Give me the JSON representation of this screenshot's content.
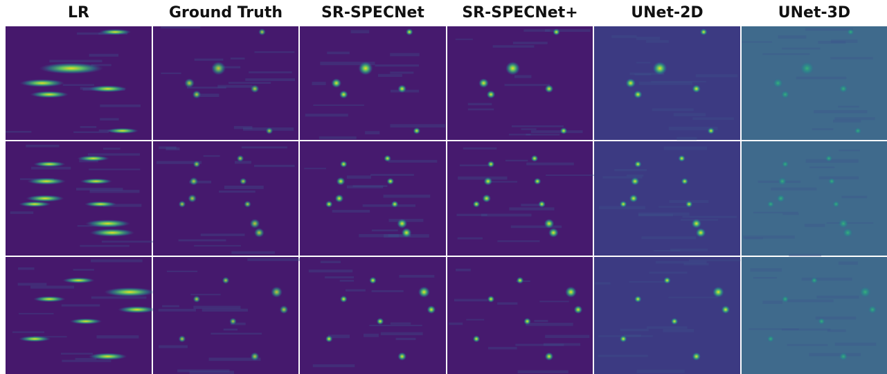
{
  "header": {
    "columns": [
      "LR",
      "Ground Truth",
      "SR-SPECNet",
      "SR-SPECNet+",
      "UNet-2D",
      "UNet-3D"
    ]
  }
}
